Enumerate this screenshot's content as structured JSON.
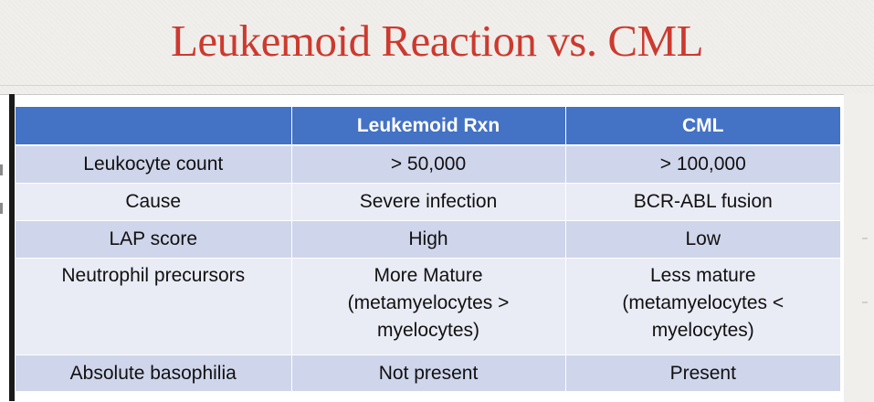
{
  "slide": {
    "title": "Leukemoid Reaction vs. CML"
  },
  "table": {
    "headers": [
      "",
      "Leukemoid Rxn",
      "CML"
    ],
    "rows": [
      {
        "feature": "Leukocyte count",
        "leukemoid": "> 50,000",
        "cml": "> 100,000"
      },
      {
        "feature": "Cause",
        "leukemoid": "Severe infection",
        "cml": "BCR-ABL fusion"
      },
      {
        "feature": "LAP score",
        "leukemoid": "High",
        "cml": "Low"
      },
      {
        "feature": "Neutrophil precursors",
        "leukemoid": [
          "More Mature",
          "(metamyelocytes >",
          "myelocytes)"
        ],
        "cml": [
          "Less mature",
          "(metamyelocytes <",
          "myelocytes)"
        ]
      },
      {
        "feature": "Absolute basophilia",
        "leukemoid": "Not present",
        "cml": "Present"
      }
    ]
  },
  "colors": {
    "title": "#cc3a2f",
    "header_bg": "#4472c4",
    "row_dark": "#cfd5ea",
    "row_light": "#e9ebf5"
  }
}
